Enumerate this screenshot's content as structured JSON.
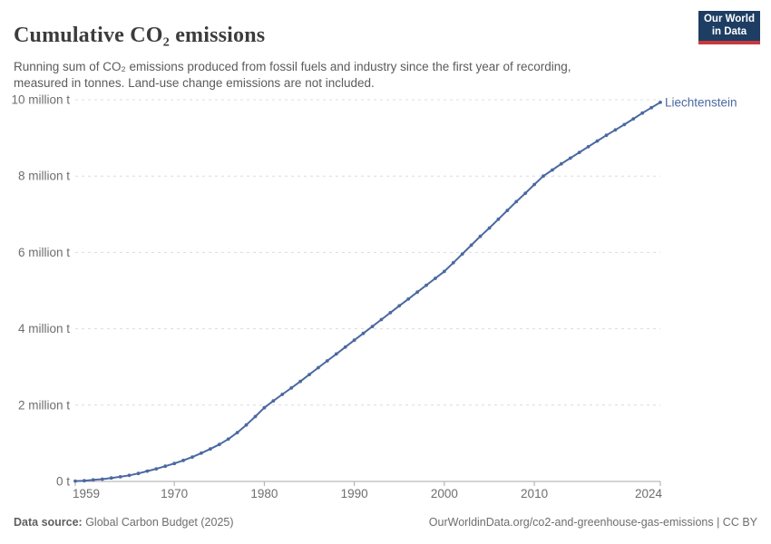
{
  "header": {
    "title": "Cumulative CO₂ emissions",
    "subtitle": "Running sum of CO₂ emissions produced from fossil fuels and industry since the first year of recording, measured in tonnes. Land-use change emissions are not included."
  },
  "logo": {
    "line1": "Our World",
    "line2": "in Data"
  },
  "footer": {
    "source_label": "Data source:",
    "source_value": " Global Carbon Budget (2025)",
    "right_text": "OurWorldinData.org/co2-and-greenhouse-gas-emissions | CC BY"
  },
  "chart_data": {
    "type": "line",
    "title": "Cumulative CO₂ emissions",
    "series_name": "Liechtenstein",
    "unit": "million tonnes",
    "xlim": [
      1959,
      2024
    ],
    "ylim": [
      0,
      10
    ],
    "grid": "dashed horizontal",
    "legend_position": "end-of-line label",
    "x": [
      1959,
      1960,
      1961,
      1962,
      1963,
      1964,
      1965,
      1966,
      1967,
      1968,
      1969,
      1970,
      1971,
      1972,
      1973,
      1974,
      1975,
      1976,
      1977,
      1978,
      1979,
      1980,
      1981,
      1982,
      1983,
      1984,
      1985,
      1986,
      1987,
      1988,
      1989,
      1990,
      1991,
      1992,
      1993,
      1994,
      1995,
      1996,
      1997,
      1998,
      1999,
      2000,
      2001,
      2002,
      2003,
      2004,
      2005,
      2006,
      2007,
      2008,
      2009,
      2010,
      2011,
      2012,
      2013,
      2014,
      2015,
      2016,
      2017,
      2018,
      2019,
      2020,
      2021,
      2022,
      2023,
      2024
    ],
    "values": [
      0.01,
      0.02,
      0.04,
      0.06,
      0.09,
      0.12,
      0.16,
      0.21,
      0.27,
      0.33,
      0.4,
      0.47,
      0.55,
      0.64,
      0.74,
      0.85,
      0.97,
      1.11,
      1.28,
      1.48,
      1.7,
      1.93,
      2.11,
      2.28,
      2.45,
      2.62,
      2.8,
      2.98,
      3.16,
      3.34,
      3.52,
      3.7,
      3.88,
      4.06,
      4.24,
      4.42,
      4.6,
      4.78,
      4.96,
      5.14,
      5.32,
      5.5,
      5.73,
      5.96,
      6.19,
      6.42,
      6.64,
      6.87,
      7.1,
      7.33,
      7.55,
      7.78,
      8.0,
      8.16,
      8.32,
      8.47,
      8.62,
      8.77,
      8.92,
      9.07,
      9.21,
      9.35,
      9.5,
      9.65,
      9.79,
      9.93
    ],
    "y_ticks": [
      {
        "value": 0,
        "label": "0 t"
      },
      {
        "value": 2,
        "label": "2 million t"
      },
      {
        "value": 4,
        "label": "4 million t"
      },
      {
        "value": 6,
        "label": "6 million t"
      },
      {
        "value": 8,
        "label": "8 million t"
      },
      {
        "value": 10,
        "label": "10 million t"
      }
    ],
    "x_ticks": [
      1959,
      1970,
      1980,
      1990,
      2000,
      2010,
      2024
    ],
    "colors": {
      "line": "#4b69a0",
      "grid": "#dcdcdc",
      "axis": "#a9a9a9",
      "tick_text": "#6e6e6e"
    }
  }
}
